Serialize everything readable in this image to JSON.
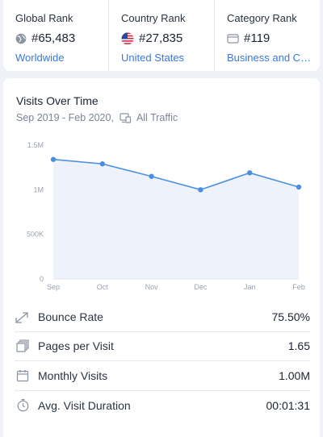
{
  "ranks": [
    {
      "label": "Global Rank",
      "value": "#65,483",
      "link": "Worldwide",
      "icon": "globe-icon"
    },
    {
      "label": "Country Rank",
      "value": "#27,835",
      "link": "United States",
      "icon": "us-flag-icon"
    },
    {
      "label": "Category Rank",
      "value": "#119",
      "link": "Business and Co...",
      "icon": "category-icon"
    }
  ],
  "visits": {
    "title": "Visits Over Time",
    "date_range": "Sep 2019 - Feb 2020,",
    "traffic": "All Traffic"
  },
  "chart_data": {
    "type": "area",
    "x": [
      "Sep",
      "Oct",
      "Nov",
      "Dec",
      "Jan",
      "Feb"
    ],
    "values": [
      1.34,
      1.29,
      1.15,
      1.0,
      1.19,
      1.03
    ],
    "unit": "M",
    "ylim": [
      0,
      1.5
    ],
    "yticks": [
      "0",
      "500K",
      "1M",
      "1.5M"
    ],
    "colors": {
      "line": "#4a90e2",
      "fill": "#eef3fb"
    }
  },
  "metrics": [
    {
      "label": "Bounce Rate",
      "value": "75.50%",
      "icon": "bounce-arrow-icon"
    },
    {
      "label": "Pages per Visit",
      "value": "1.65",
      "icon": "pages-icon"
    },
    {
      "label": "Monthly Visits",
      "value": "1.00M",
      "icon": "calendar-icon"
    },
    {
      "label": "Avg. Visit Duration",
      "value": "00:01:31",
      "icon": "stopwatch-icon"
    }
  ]
}
